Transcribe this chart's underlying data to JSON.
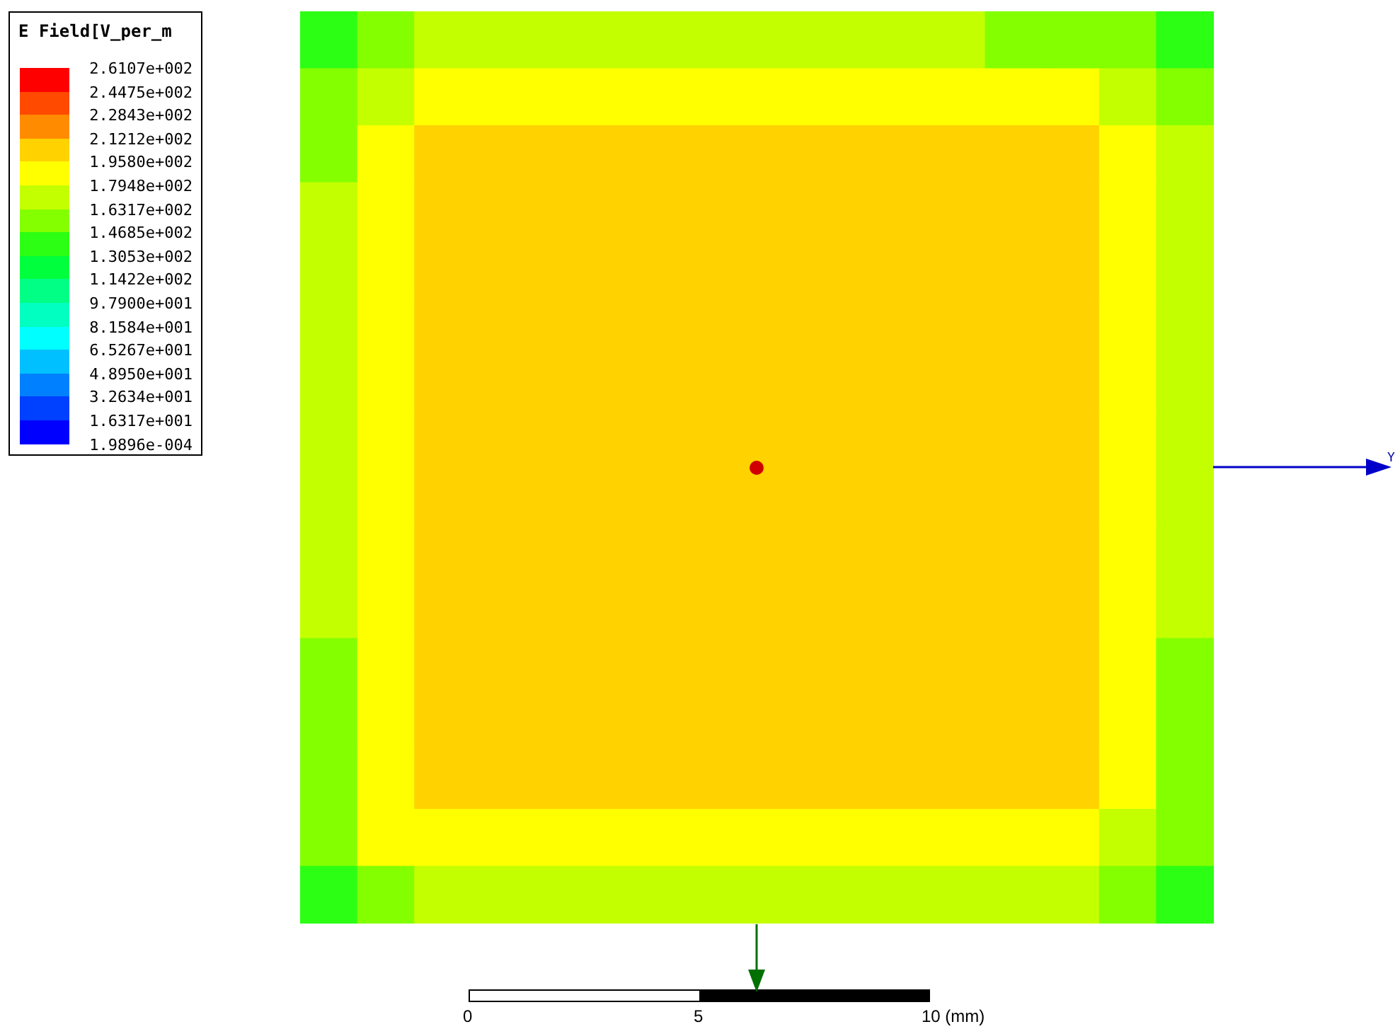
{
  "chart_data": {
    "type": "heatmap",
    "clabel": "E Field[V_per_m",
    "categories": [
      null,
      null,
      null,
      null,
      null,
      null,
      null,
      null,
      null,
      null,
      null,
      null,
      null,
      null,
      null,
      null
    ],
    "y_categories": [
      null,
      null,
      null,
      null,
      null,
      null,
      null,
      null,
      null,
      null,
      null,
      null,
      null,
      null,
      null,
      null
    ],
    "cells": [
      [
        138,
        155,
        171,
        171,
        171,
        171,
        171,
        171,
        171,
        171,
        171,
        171,
        155,
        155,
        155,
        138
      ],
      [
        155,
        171,
        188,
        188,
        188,
        188,
        188,
        188,
        188,
        188,
        188,
        188,
        188,
        188,
        171,
        155
      ],
      [
        155,
        188,
        204,
        204,
        204,
        204,
        204,
        204,
        204,
        204,
        204,
        204,
        204,
        204,
        188,
        171
      ],
      [
        171,
        188,
        204,
        204,
        204,
        204,
        204,
        204,
        204,
        204,
        204,
        204,
        204,
        204,
        188,
        171
      ],
      [
        171,
        188,
        204,
        204,
        204,
        204,
        204,
        204,
        204,
        204,
        204,
        204,
        204,
        204,
        188,
        171
      ],
      [
        171,
        188,
        204,
        204,
        204,
        204,
        204,
        204,
        204,
        204,
        204,
        204,
        204,
        204,
        188,
        171
      ],
      [
        171,
        188,
        204,
        204,
        204,
        204,
        204,
        204,
        204,
        204,
        204,
        204,
        204,
        204,
        188,
        171
      ],
      [
        171,
        188,
        204,
        204,
        204,
        204,
        204,
        204,
        204,
        204,
        204,
        204,
        204,
        204,
        188,
        171
      ],
      [
        171,
        188,
        204,
        204,
        204,
        204,
        204,
        204,
        204,
        204,
        204,
        204,
        204,
        204,
        188,
        171
      ],
      [
        171,
        188,
        204,
        204,
        204,
        204,
        204,
        204,
        204,
        204,
        204,
        204,
        204,
        204,
        188,
        171
      ],
      [
        171,
        188,
        204,
        204,
        204,
        204,
        204,
        204,
        204,
        204,
        204,
        204,
        204,
        204,
        188,
        171
      ],
      [
        155,
        188,
        204,
        204,
        204,
        204,
        204,
        204,
        204,
        204,
        204,
        204,
        204,
        204,
        188,
        155
      ],
      [
        155,
        188,
        204,
        204,
        204,
        204,
        204,
        204,
        204,
        204,
        204,
        204,
        204,
        204,
        188,
        155
      ],
      [
        155,
        188,
        204,
        204,
        204,
        204,
        204,
        204,
        204,
        204,
        204,
        204,
        204,
        204,
        188,
        155
      ],
      [
        155,
        188,
        188,
        188,
        188,
        188,
        188,
        188,
        188,
        188,
        188,
        188,
        188,
        188,
        171,
        155
      ],
      [
        138,
        155,
        171,
        171,
        171,
        171,
        171,
        171,
        171,
        171,
        171,
        171,
        171,
        171,
        155,
        138
      ]
    ],
    "clim": [
      0.00019896,
      261.07
    ],
    "cticks": [
      {
        "value": 261.07,
        "label": "2.6107e+002"
      },
      {
        "value": 244.75,
        "label": "2.4475e+002"
      },
      {
        "value": 228.43,
        "label": "2.2843e+002"
      },
      {
        "value": 212.12,
        "label": "2.1212e+002"
      },
      {
        "value": 195.8,
        "label": "1.9580e+002"
      },
      {
        "value": 179.48,
        "label": "1.7948e+002"
      },
      {
        "value": 163.17,
        "label": "1.6317e+002"
      },
      {
        "value": 146.85,
        "label": "1.4685e+002"
      },
      {
        "value": 130.53,
        "label": "1.3053e+002"
      },
      {
        "value": 114.22,
        "label": "1.1422e+002"
      },
      {
        "value": 97.9,
        "label": "9.7900e+001"
      },
      {
        "value": 81.584,
        "label": "8.1584e+001"
      },
      {
        "value": 65.267,
        "label": "6.5267e+001"
      },
      {
        "value": 48.95,
        "label": "4.8950e+001"
      },
      {
        "value": 32.634,
        "label": "3.2634e+001"
      },
      {
        "value": 16.317,
        "label": "1.6317e+001"
      },
      {
        "value": 0.00019896,
        "label": "1.9896e-004"
      }
    ],
    "annotations": [
      "0",
      "5",
      "10 (mm)",
      "Y"
    ]
  }
}
